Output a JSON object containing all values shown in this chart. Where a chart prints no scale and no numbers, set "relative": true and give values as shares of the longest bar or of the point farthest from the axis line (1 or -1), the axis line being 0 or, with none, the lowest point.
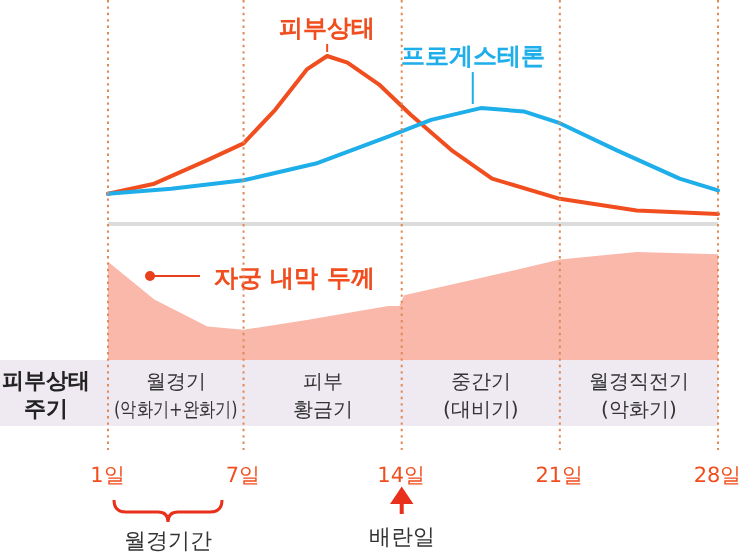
{
  "chart_data": [
    {
      "type": "line",
      "relative": true,
      "xlim": [
        1,
        28
      ],
      "xticks": [
        1,
        7,
        14,
        21,
        28
      ],
      "tick_labels": false,
      "grid": "x",
      "series": [
        {
          "name": "피부상태",
          "color": "#f04e1e",
          "x": [
            1,
            3.05,
            5.4,
            7,
            8.4,
            9.8,
            10.7,
            11.6,
            13.0,
            14.4,
            16.2,
            18.0,
            21,
            24.4,
            28
          ],
          "values": [
            0.18,
            0.24,
            0.38,
            0.48,
            0.68,
            0.92,
            1,
            0.96,
            0.83,
            0.65,
            0.44,
            0.27,
            0.15,
            0.08,
            0.06
          ]
        },
        {
          "name": "프로게스테론",
          "color": "#1eaeea",
          "x": [
            1,
            3.8,
            7,
            10.2,
            13.4,
            15.3,
            17.5,
            19.4,
            21,
            23.5,
            26.3,
            28
          ],
          "values": [
            0.18,
            0.21,
            0.26,
            0.36,
            0.52,
            0.62,
            0.69,
            0.67,
            0.6,
            0.44,
            0.27,
            0.2
          ]
        }
      ]
    },
    {
      "type": "area",
      "relative": true,
      "xlim": [
        1,
        28
      ],
      "grid": "x",
      "xticks": [
        {
          "value": 1,
          "label": "1일"
        },
        {
          "value": 7,
          "label": "7일"
        },
        {
          "value": 14,
          "label": "14일"
        },
        {
          "value": 21,
          "label": "21일"
        },
        {
          "value": 28,
          "label": "28일"
        }
      ],
      "series": [
        {
          "name": "자궁 내막 두께",
          "color": "#f9b8aa",
          "x": [
            1,
            3.05,
            5.4,
            7,
            9.8,
            13.4,
            13.9,
            14.1,
            17.1,
            21,
            24.4,
            28
          ],
          "values": [
            0.91,
            0.56,
            0.31,
            0.28,
            0.37,
            0.5,
            0.5,
            0.6,
            0.74,
            0.93,
            1,
            0.98
          ]
        }
      ],
      "annotations": [
        "피부상태\n주기",
        "월경기\n(악화기+완화기)",
        "피부\n황금기",
        "중간기\n(대비기)",
        "월경직전기\n(악화기)",
        "월경기간",
        "배란일"
      ]
    }
  ]
}
